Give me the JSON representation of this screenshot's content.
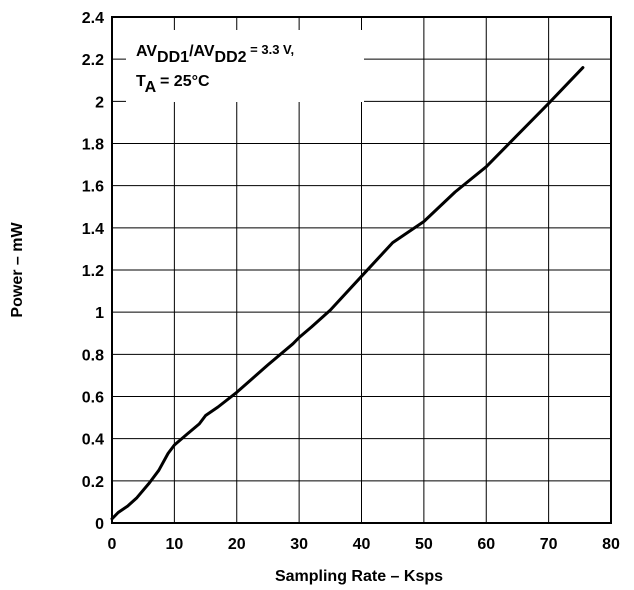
{
  "chart_data": {
    "type": "line",
    "xlabel": "Sampling Rate – Ksps",
    "ylabel": "Power – mW",
    "xlim": [
      0,
      80
    ],
    "ylim": [
      0,
      2.4
    ],
    "x_ticks": [
      "0",
      "10",
      "20",
      "30",
      "40",
      "50",
      "60",
      "70",
      "80"
    ],
    "y_ticks": [
      "0",
      "0.2",
      "0.4",
      "0.6",
      "0.8",
      "1",
      "1.2",
      "1.4",
      "1.6",
      "1.8",
      "2",
      "2.2",
      "2.4"
    ],
    "grid": true,
    "annotation": {
      "line1_a": "AV",
      "line1_b": "DD1",
      "line1_c": "/AV",
      "line1_d": "DD2",
      "line1_e": " = 3.3 V,",
      "line2_a": "T",
      "line2_b": "A",
      "line2_c": " = 25°C"
    },
    "series": [
      {
        "x": [
          0,
          1,
          2.5,
          4,
          6,
          7.5,
          9,
          10,
          12,
          14,
          15,
          17,
          20,
          25,
          29,
          30,
          32,
          35,
          40,
          45,
          50,
          55,
          60,
          63,
          65,
          70,
          75.5
        ],
        "y": [
          0.02,
          0.05,
          0.08,
          0.12,
          0.19,
          0.25,
          0.33,
          0.37,
          0.42,
          0.47,
          0.51,
          0.55,
          0.62,
          0.75,
          0.85,
          0.88,
          0.93,
          1.01,
          1.17,
          1.33,
          1.43,
          1.57,
          1.69,
          1.78,
          1.84,
          1.99,
          2.16
        ],
        "color": "#000000"
      }
    ]
  }
}
